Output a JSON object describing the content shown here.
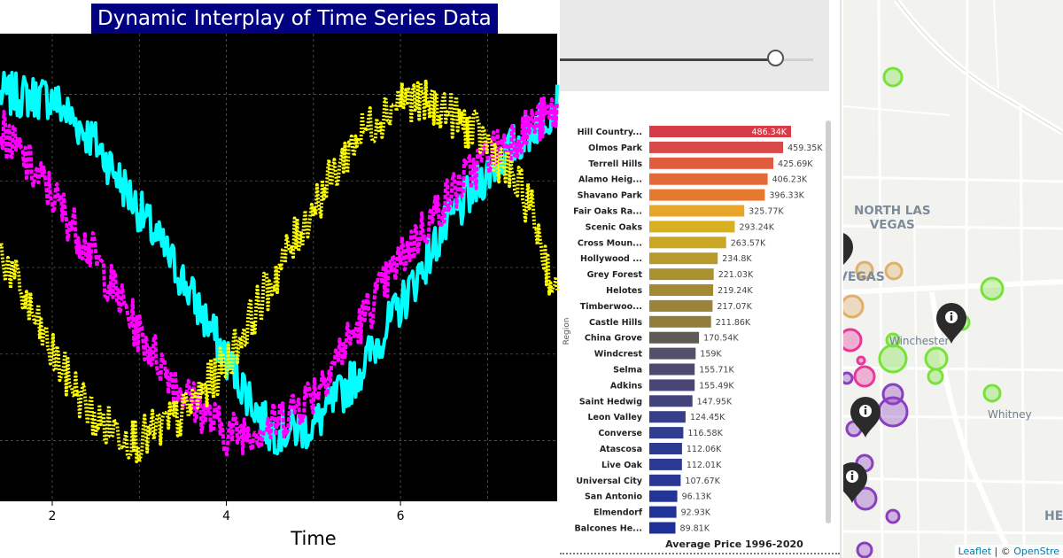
{
  "timeseries": {
    "title": "Dynamic Interplay of Time Series Data",
    "xlabel": "Time",
    "xticks": [
      "2",
      "4",
      "6"
    ],
    "colors": {
      "series_a": "#00ffff",
      "series_b": "#ff00ff",
      "series_c": "#ffff00",
      "background": "#000000"
    }
  },
  "bar_panel": {
    "slider": {
      "position": 0.86
    },
    "axis_label": "Region",
    "xlabel": "Average Price 1996-2020",
    "colors": {
      "top": "#d73b47",
      "middle": "#9b8337",
      "bottom": "#1f2f98"
    }
  },
  "chart_data": [
    {
      "type": "line",
      "title": "Dynamic Interplay of Time Series Data",
      "xlabel": "Time",
      "ylabel": "",
      "xlim": [
        1.4,
        7.8
      ],
      "ylim": [
        -1.35,
        1.35
      ],
      "grid": true,
      "series": [
        {
          "color": "#00ffff",
          "style": "solid",
          "x": [
            1.4,
            2.0,
            2.5,
            3.0,
            3.5,
            4.0,
            4.5,
            5.0,
            5.5,
            6.0,
            6.5,
            7.0,
            7.5,
            7.8
          ],
          "y": [
            1.0,
            0.98,
            0.72,
            0.33,
            -0.07,
            -0.52,
            -0.95,
            -0.92,
            -0.62,
            -0.22,
            0.22,
            0.55,
            0.8,
            0.95
          ]
        },
        {
          "color": "#ff00ff",
          "style": "dashed",
          "x": [
            1.4,
            2.0,
            2.5,
            3.0,
            3.5,
            4.0,
            4.5,
            5.0,
            5.5,
            6.0,
            6.5,
            7.0,
            7.5,
            7.8
          ],
          "y": [
            0.8,
            0.42,
            0.05,
            -0.38,
            -0.72,
            -0.96,
            -0.92,
            -0.72,
            -0.35,
            0.05,
            0.38,
            0.65,
            0.82,
            0.9
          ]
        },
        {
          "color": "#ffff00",
          "style": "dotted",
          "x": [
            1.4,
            2.0,
            2.5,
            3.0,
            3.5,
            4.0,
            4.5,
            5.0,
            5.5,
            6.0,
            6.5,
            7.0,
            7.5,
            7.8
          ],
          "y": [
            0.1,
            -0.5,
            -0.88,
            -1.0,
            -0.85,
            -0.55,
            -0.1,
            0.35,
            0.75,
            0.98,
            0.92,
            0.72,
            0.35,
            -0.2
          ]
        }
      ]
    },
    {
      "type": "bar",
      "orientation": "horizontal",
      "xlabel": "Average Price 1996-2020",
      "ylabel": "Region",
      "categories": [
        "Hill Country...",
        "Olmos Park",
        "Terrell Hills",
        "Alamo Heig...",
        "Shavano Park",
        "Fair Oaks Ra...",
        "Scenic Oaks",
        "Cross Moun...",
        "Hollywood ...",
        "Grey Forest",
        "Helotes",
        "Timberwoo...",
        "Castle Hills",
        "China Grove",
        "Windcrest",
        "Selma",
        "Adkins",
        "Saint Hedwig",
        "Leon Valley",
        "Converse",
        "Atascosa",
        "Live Oak",
        "Universal City",
        "San Antonio",
        "Elmendorf",
        "Balcones He..."
      ],
      "values": [
        486.34,
        459.35,
        425.69,
        406.23,
        396.33,
        325.77,
        293.24,
        263.57,
        234.8,
        221.03,
        219.24,
        217.07,
        211.86,
        170.54,
        159,
        155.71,
        155.49,
        147.95,
        124.45,
        116.58,
        112.06,
        112.01,
        107.67,
        96.13,
        92.93,
        89.81
      ],
      "labels": [
        "486.34K",
        "459.35K",
        "425.69K",
        "406.23K",
        "396.33K",
        "325.77K",
        "293.24K",
        "263.57K",
        "234.8K",
        "221.03K",
        "219.24K",
        "217.07K",
        "211.86K",
        "170.54K",
        "159K",
        "155.71K",
        "155.49K",
        "147.95K",
        "124.45K",
        "116.58K",
        "112.06K",
        "112.01K",
        "107.67K",
        "96.13K",
        "92.93K",
        "89.81K"
      ],
      "colors": [
        "#d73b47",
        "#d9494a",
        "#df5c3d",
        "#e36a36",
        "#e57a2e",
        "#e7a52a",
        "#d9b020",
        "#c9a624",
        "#b89a2b",
        "#aa9130",
        "#a28a33",
        "#9b8337",
        "#927c3a",
        "#5f5a56",
        "#54506a",
        "#4d4a72",
        "#484677",
        "#43437c",
        "#363f8a",
        "#303c8e",
        "#2c3a91",
        "#2a3993",
        "#283894",
        "#233596",
        "#213397",
        "#1f2f98"
      ]
    }
  ],
  "map": {
    "labels": {
      "north_las_vegas_1": "NORTH LAS",
      "north_las_vegas_2": "VEGAS",
      "vegas": "VEGAS",
      "winchester": "Winchester",
      "whitney": "Whitney",
      "henderson_partial": "HE"
    },
    "attribution": {
      "leaflet": "Leaflet",
      "separator": " | © ",
      "osm": "OpenStre"
    },
    "colors": {
      "green": "#78e23a",
      "pink": "#e8379a",
      "purple": "#8a3fc0",
      "orange": "#e0b06a",
      "road": "#ffffff",
      "land": "#f2f2ef"
    }
  }
}
